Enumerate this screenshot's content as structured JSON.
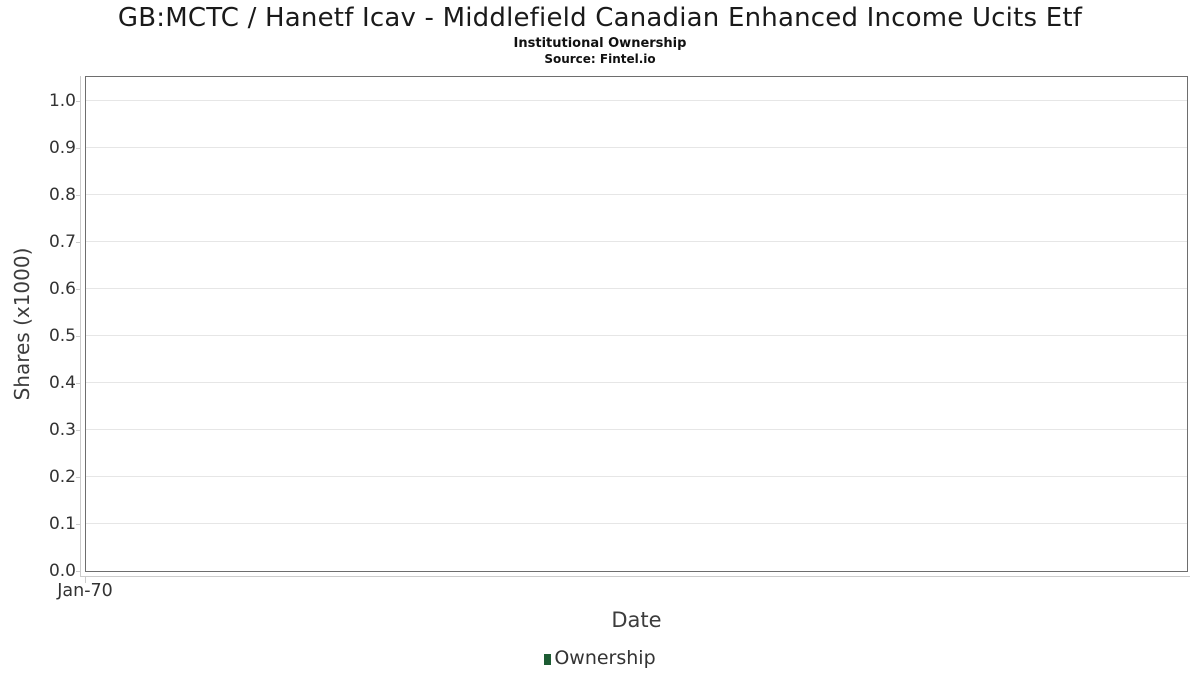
{
  "header": {
    "title": "GB:MCTC / Hanetf Icav - Middlefield Canadian Enhanced Income Ucits Etf",
    "subtitle": "Institutional Ownership",
    "source": "Source: Fintel.io"
  },
  "colors": {
    "series_green": "#1d5c33",
    "gridline": "#e6e6e6",
    "plot_border": "#6e6e6e",
    "axis_line": "#cccccc",
    "tick_text": "#333333",
    "axis_title_text": "#3c3c3c"
  },
  "chart_data": {
    "type": "line",
    "title": "GB:MCTC / Hanetf Icav - Middlefield Canadian Enhanced Income Ucits Etf",
    "subtitle": "Institutional Ownership",
    "source": "Source: Fintel.io",
    "xlabel": "Date",
    "ylabel": "Shares (x1000)",
    "x_ticks": [
      "Jan-70"
    ],
    "y_ticks": [
      0.0,
      0.1,
      0.2,
      0.3,
      0.4,
      0.5,
      0.6,
      0.7,
      0.8,
      0.9,
      1.0
    ],
    "y_tick_decimals": 1,
    "ylim": [
      0,
      1.05
    ],
    "grid": true,
    "legend_position": "bottom",
    "series": [
      {
        "name": "Ownership",
        "color": "#1d5c33",
        "x": [],
        "values": []
      }
    ]
  }
}
